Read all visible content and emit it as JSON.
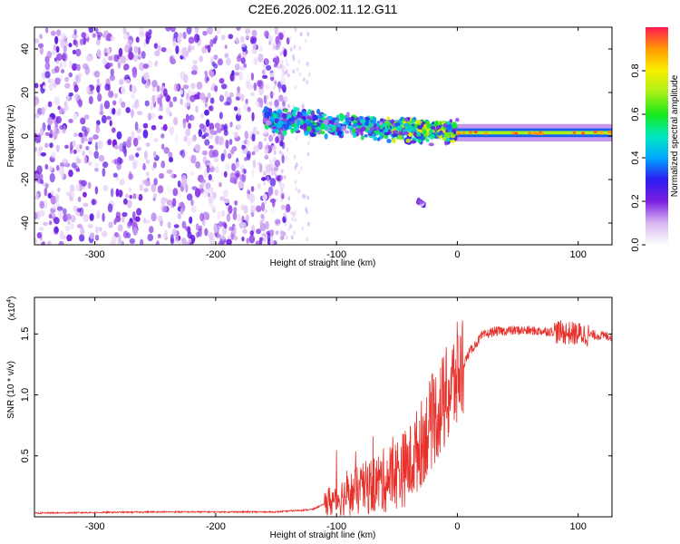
{
  "title": "C2E6.2026.002.11.12.G11",
  "chart_data": [
    {
      "type": "heatmap",
      "title": "C2E6.2026.002.11.12.G11",
      "xlabel": "Height of straight line (km)",
      "ylabel": "Frequency (Hz)",
      "xlim": [
        -350,
        128
      ],
      "ylim": [
        -50,
        50
      ],
      "xticks": [
        -300,
        -200,
        -100,
        0,
        100
      ],
      "xtick_labels": [
        "-300",
        "-200",
        "-100",
        "0",
        "100"
      ],
      "yticks": [
        -40,
        -20,
        0,
        20,
        40
      ],
      "ytick_labels": [
        "-40",
        "-20",
        "0",
        "20",
        "40"
      ],
      "colorbar": {
        "label": "Normalized spectral amplitude",
        "range": [
          0,
          1
        ],
        "ticks": [
          0.0,
          0.2,
          0.4,
          0.6,
          0.8
        ],
        "tick_labels": [
          "0.0",
          "0.2",
          "0.4",
          "0.6",
          "0.8"
        ]
      },
      "regions": [
        {
          "name": "noise",
          "x_range": [
            -350,
            -140
          ],
          "freq_range": [
            -50,
            50
          ],
          "amplitude": 0.1
        },
        {
          "name": "signal-onset",
          "x_range": [
            -160,
            -60
          ],
          "center_freq": [
            8,
            3
          ],
          "amplitude": 0.4
        },
        {
          "name": "signal",
          "x_range": [
            -60,
            0
          ],
          "center_freq": [
            3,
            2
          ],
          "amplitude": 0.55
        },
        {
          "name": "steady-carrier",
          "x_range": [
            0,
            128
          ],
          "center_freq": [
            1.5,
            1.5
          ],
          "amplitude": 0.7
        },
        {
          "name": "isolated-spot",
          "x_range": [
            -32,
            -28
          ],
          "center_freq": [
            -30,
            -32
          ],
          "amplitude": 0.2
        }
      ]
    },
    {
      "type": "line",
      "title": "",
      "xlabel": "Height of straight line (km)",
      "ylabel": "SNR (10 * v/v)",
      "y_multiplier": "(x10",
      "y_multiplier_exp": "4",
      "y_multiplier_close": ")",
      "xlim": [
        -350,
        128
      ],
      "ylim": [
        0,
        1.8
      ],
      "xticks": [
        -300,
        -200,
        -100,
        0,
        100
      ],
      "xtick_labels": [
        "-300",
        "-200",
        "-100",
        "0",
        "100"
      ],
      "yticks": [
        0.5,
        1.0,
        1.5
      ],
      "ytick_labels": [
        "0.5",
        "1.0",
        "1.5"
      ],
      "series": [
        {
          "name": "SNR",
          "color": "#e8302b",
          "x": [
            -350,
            -250,
            -200,
            -150,
            -120,
            -100,
            -80,
            -60,
            -40,
            -30,
            -20,
            -10,
            0,
            10,
            20,
            30,
            50,
            80,
            100,
            128
          ],
          "y": [
            0.03,
            0.04,
            0.04,
            0.04,
            0.06,
            0.15,
            0.22,
            0.3,
            0.42,
            0.6,
            0.8,
            0.95,
            1.15,
            1.35,
            1.48,
            1.52,
            1.53,
            1.52,
            1.5,
            1.48
          ]
        }
      ]
    }
  ]
}
